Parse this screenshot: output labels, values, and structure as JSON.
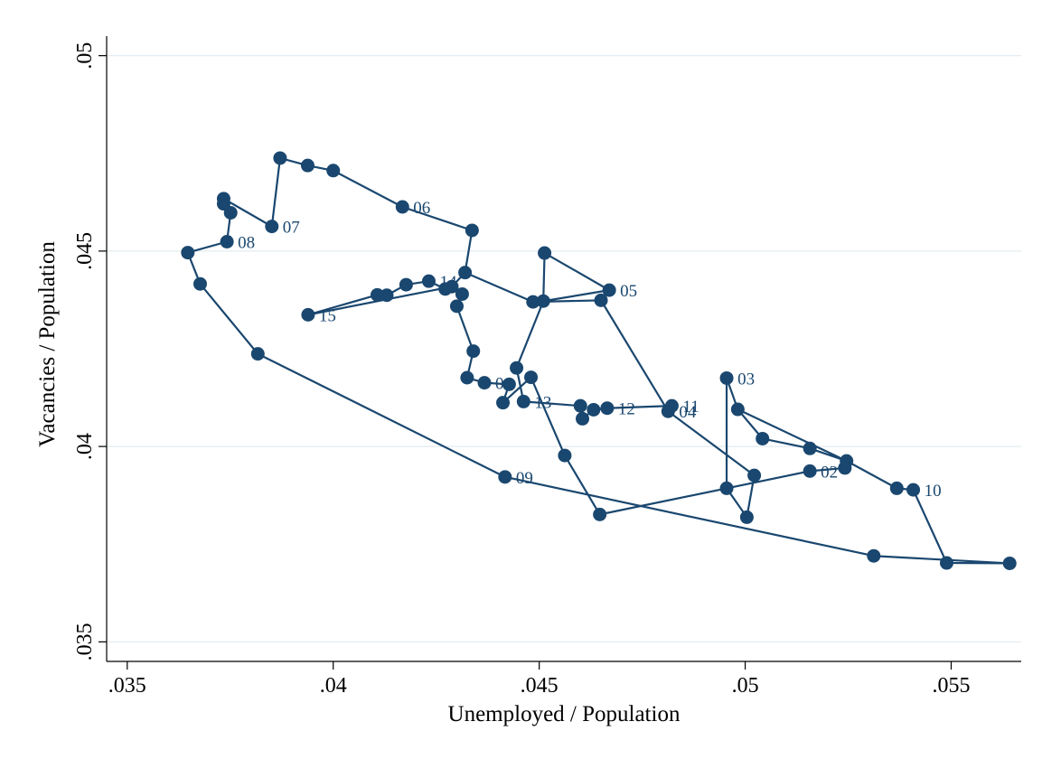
{
  "chart_data": {
    "type": "scatter",
    "xlabel": "Unemployed / Population",
    "ylabel": "Vacancies / Population",
    "xlim": [
      0.0345,
      0.0567
    ],
    "ylim": [
      0.0345,
      0.0505
    ],
    "xticks": [
      {
        "value": 0.035,
        "label": ".035"
      },
      {
        "value": 0.04,
        "label": ".04"
      },
      {
        "value": 0.045,
        "label": ".045"
      },
      {
        "value": 0.05,
        "label": ".05"
      },
      {
        "value": 0.055,
        "label": ".055"
      }
    ],
    "yticks": [
      {
        "value": 0.035,
        "label": ".035"
      },
      {
        "value": 0.04,
        "label": ".04"
      },
      {
        "value": 0.045,
        "label": ".045"
      },
      {
        "value": 0.05,
        "label": ".05"
      }
    ],
    "grid": true,
    "legend": "none",
    "colors": {
      "series": "#1a476f",
      "grid": "#e3ecf2"
    },
    "series": [
      {
        "points": [
          {
            "x": 0.04955,
            "y": 0.04175,
            "label": "03"
          },
          {
            "x": 0.04955,
            "y": 0.03893
          },
          {
            "x": 0.05157,
            "y": 0.03937,
            "label": "02"
          },
          {
            "x": 0.05242,
            "y": 0.03945
          },
          {
            "x": 0.05246,
            "y": 0.03963
          },
          {
            "x": 0.04982,
            "y": 0.04095
          },
          {
            "x": 0.04955,
            "y": 0.04175
          },
          {
            "x": 0.04982,
            "y": 0.04095
          },
          {
            "x": 0.05042,
            "y": 0.0402
          },
          {
            "x": 0.05157,
            "y": 0.03995
          },
          {
            "x": 0.05246,
            "y": 0.03963
          },
          {
            "x": 0.05368,
            "y": 0.03893
          },
          {
            "x": 0.05408,
            "y": 0.03889,
            "label": "10"
          },
          {
            "x": 0.05489,
            "y": 0.03702
          },
          {
            "x": 0.05642,
            "y": 0.03701
          },
          {
            "x": 0.05312,
            "y": 0.0372
          },
          {
            "x": 0.04417,
            "y": 0.03922,
            "label": "09"
          },
          {
            "x": 0.03817,
            "y": 0.04237
          },
          {
            "x": 0.03677,
            "y": 0.04416
          },
          {
            "x": 0.03647,
            "y": 0.04496
          },
          {
            "x": 0.03742,
            "y": 0.04524,
            "label": "08"
          },
          {
            "x": 0.03751,
            "y": 0.04598
          },
          {
            "x": 0.03734,
            "y": 0.04621
          },
          {
            "x": 0.03734,
            "y": 0.04634
          },
          {
            "x": 0.03851,
            "y": 0.04563,
            "label": "07"
          },
          {
            "x": 0.03871,
            "y": 0.04738
          },
          {
            "x": 0.03938,
            "y": 0.04719
          },
          {
            "x": 0.04,
            "y": 0.04706
          },
          {
            "x": 0.04168,
            "y": 0.04613,
            "label": "06"
          },
          {
            "x": 0.04337,
            "y": 0.04553
          },
          {
            "x": 0.0432,
            "y": 0.04445
          },
          {
            "x": 0.04485,
            "y": 0.0437
          },
          {
            "x": 0.0465,
            "y": 0.04374
          },
          {
            "x": 0.04813,
            "y": 0.0409,
            "label": "04"
          },
          {
            "x": 0.05022,
            "y": 0.03926
          },
          {
            "x": 0.05004,
            "y": 0.03819
          },
          {
            "x": 0.04955,
            "y": 0.03893
          },
          {
            "x": 0.04647,
            "y": 0.03826
          },
          {
            "x": 0.04562,
            "y": 0.03977
          },
          {
            "x": 0.0448,
            "y": 0.04177
          },
          {
            "x": 0.04412,
            "y": 0.04112
          },
          {
            "x": 0.04427,
            "y": 0.04159
          },
          {
            "x": 0.04367,
            "y": 0.04163,
            "label": "01"
          },
          {
            "x": 0.04325,
            "y": 0.04176
          },
          {
            "x": 0.0434,
            "y": 0.04244
          },
          {
            "x": 0.043,
            "y": 0.04359
          },
          {
            "x": 0.04313,
            "y": 0.0439
          },
          {
            "x": 0.04288,
            "y": 0.04409
          },
          {
            "x": 0.04272,
            "y": 0.04403
          },
          {
            "x": 0.04232,
            "y": 0.04423,
            "label": "14"
          },
          {
            "x": 0.04177,
            "y": 0.04414
          },
          {
            "x": 0.0413,
            "y": 0.04387
          },
          {
            "x": 0.04107,
            "y": 0.04388
          },
          {
            "x": 0.03939,
            "y": 0.04337,
            "label": "15"
          },
          {
            "x": 0.04288,
            "y": 0.04409
          },
          {
            "x": 0.0432,
            "y": 0.04445
          },
          {
            "x": 0.04485,
            "y": 0.0437
          },
          {
            "x": 0.0451,
            "y": 0.04372
          },
          {
            "x": 0.04513,
            "y": 0.04495
          },
          {
            "x": 0.0467,
            "y": 0.044,
            "label": "05"
          },
          {
            "x": 0.0451,
            "y": 0.04372
          },
          {
            "x": 0.04445,
            "y": 0.04201
          },
          {
            "x": 0.04462,
            "y": 0.04115,
            "label": "13"
          },
          {
            "x": 0.046,
            "y": 0.04104
          },
          {
            "x": 0.04605,
            "y": 0.04071
          },
          {
            "x": 0.04632,
            "y": 0.04094
          },
          {
            "x": 0.04665,
            "y": 0.04098,
            "label": "12"
          },
          {
            "x": 0.04822,
            "y": 0.04104,
            "label": "11"
          },
          {
            "x": 0.04813,
            "y": 0.0409
          }
        ]
      }
    ]
  }
}
